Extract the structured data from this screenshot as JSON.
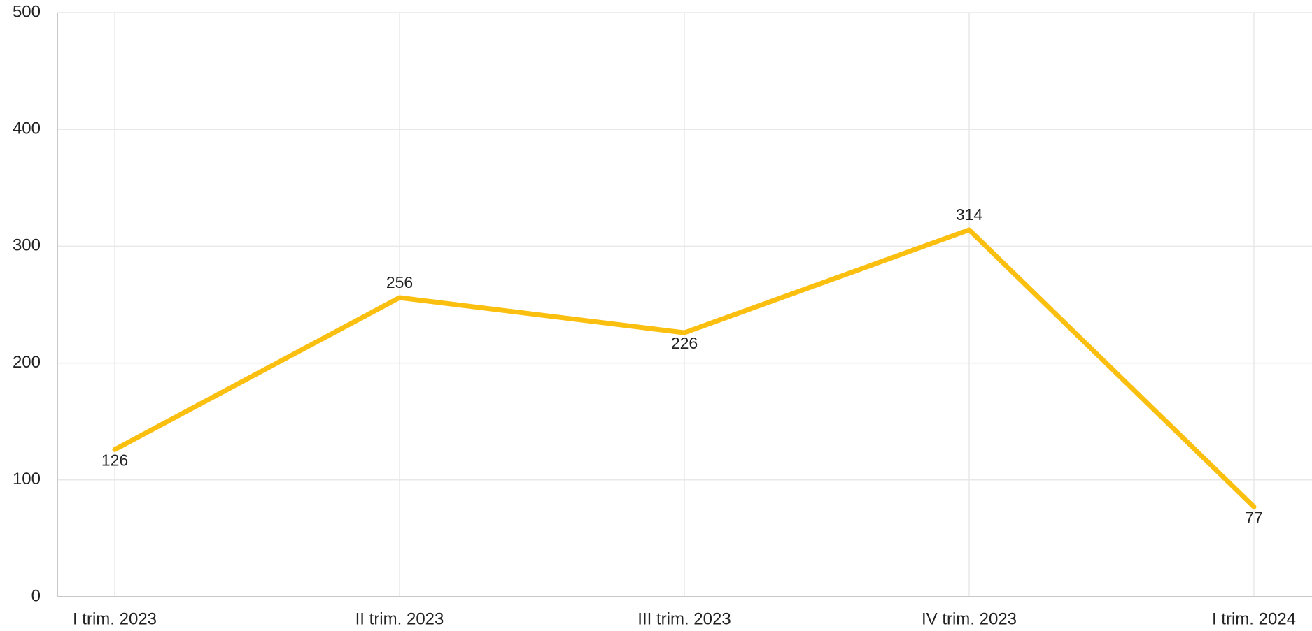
{
  "chart_data": {
    "type": "line",
    "categories": [
      "I trim. 2023",
      "II trim. 2023",
      "III trim. 2023",
      "IV trim. 2023",
      "I trim. 2024"
    ],
    "series": [
      {
        "name": null,
        "color": "#fbbf0f",
        "values": [
          126,
          256,
          226,
          314,
          77
        ]
      }
    ],
    "ylim": [
      0,
      500
    ],
    "yticks": [
      0,
      100,
      200,
      300,
      400,
      500
    ],
    "grid": true,
    "data_labels": true
  }
}
